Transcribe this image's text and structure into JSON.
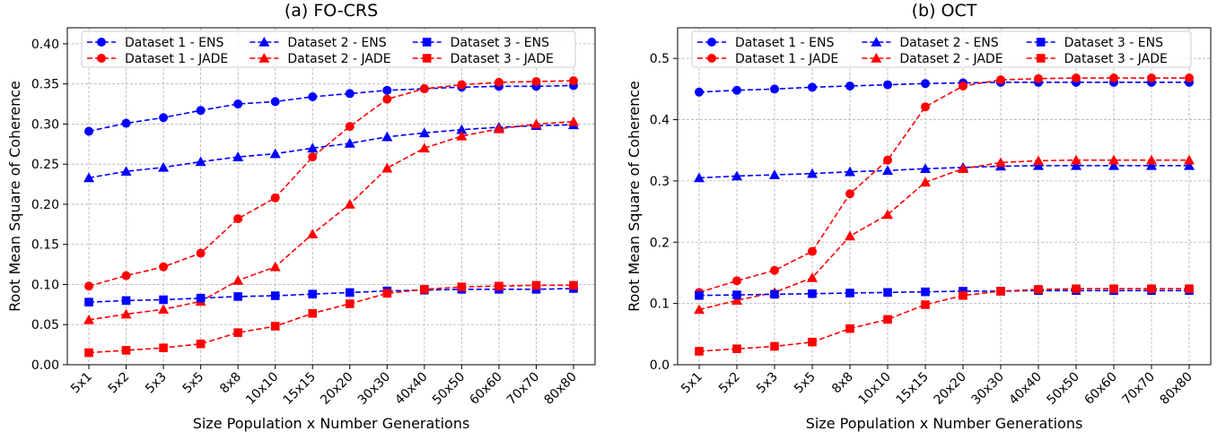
{
  "chart_data": [
    {
      "type": "line",
      "title": "(a) FO-CRS",
      "xlabel": "Size Population x Number Generations",
      "ylabel": "Root Mean Square of Coherence",
      "categories": [
        "5x1",
        "5x2",
        "5x3",
        "5x5",
        "8x8",
        "10x10",
        "15x15",
        "20x20",
        "30x30",
        "40x40",
        "50x50",
        "60x60",
        "70x70",
        "80x80"
      ],
      "ylim": [
        0,
        0.42
      ],
      "yticks": [
        "0.00",
        "0.05",
        "0.10",
        "0.15",
        "0.20",
        "0.25",
        "0.30",
        "0.35",
        "0.40"
      ],
      "grid": true,
      "legend_position": "top",
      "series": [
        {
          "name": "Dataset 1 - ENS",
          "color": "#0000ff",
          "marker": "circle",
          "values": [
            0.291,
            0.301,
            0.308,
            0.317,
            0.325,
            0.328,
            0.334,
            0.338,
            0.342,
            0.344,
            0.346,
            0.347,
            0.347,
            0.348
          ]
        },
        {
          "name": "Dataset 1 - JADE",
          "color": "#ff0000",
          "marker": "circle",
          "values": [
            0.098,
            0.111,
            0.122,
            0.139,
            0.182,
            0.208,
            0.259,
            0.297,
            0.331,
            0.344,
            0.349,
            0.352,
            0.353,
            0.354
          ]
        },
        {
          "name": "Dataset 2 - ENS",
          "color": "#0000ff",
          "marker": "triangle",
          "values": [
            0.233,
            0.241,
            0.246,
            0.253,
            0.259,
            0.263,
            0.27,
            0.276,
            0.284,
            0.289,
            0.293,
            0.296,
            0.298,
            0.299
          ]
        },
        {
          "name": "Dataset 2 - JADE",
          "color": "#ff0000",
          "marker": "triangle",
          "values": [
            0.056,
            0.063,
            0.069,
            0.079,
            0.105,
            0.122,
            0.163,
            0.2,
            0.245,
            0.27,
            0.285,
            0.294,
            0.3,
            0.303
          ]
        },
        {
          "name": "Dataset 3 - ENS",
          "color": "#0000ff",
          "marker": "square",
          "values": [
            0.078,
            0.08,
            0.081,
            0.083,
            0.085,
            0.086,
            0.088,
            0.09,
            0.092,
            0.093,
            0.094,
            0.094,
            0.094,
            0.095
          ]
        },
        {
          "name": "Dataset 3 - JADE",
          "color": "#ff0000",
          "marker": "square",
          "values": [
            0.015,
            0.018,
            0.021,
            0.026,
            0.04,
            0.048,
            0.064,
            0.076,
            0.089,
            0.094,
            0.097,
            0.098,
            0.099,
            0.099
          ]
        }
      ]
    },
    {
      "type": "line",
      "title": "(b) OCT",
      "xlabel": "Size Population x Number Generations",
      "ylabel": "Root Mean Square of Coherence",
      "categories": [
        "5x1",
        "5x2",
        "5x3",
        "5x5",
        "8x8",
        "10x10",
        "15x15",
        "20x20",
        "30x30",
        "40x40",
        "50x50",
        "60x60",
        "70x70",
        "80x80"
      ],
      "ylim": [
        0,
        0.55
      ],
      "yticks": [
        "0.0",
        "0.1",
        "0.2",
        "0.3",
        "0.4",
        "0.5"
      ],
      "grid": true,
      "legend_position": "top",
      "series": [
        {
          "name": "Dataset 1 - ENS",
          "color": "#0000ff",
          "marker": "circle",
          "values": [
            0.445,
            0.448,
            0.45,
            0.453,
            0.455,
            0.457,
            0.459,
            0.46,
            0.461,
            0.461,
            0.461,
            0.461,
            0.461,
            0.461
          ]
        },
        {
          "name": "Dataset 1 - JADE",
          "color": "#ff0000",
          "marker": "circle",
          "values": [
            0.118,
            0.137,
            0.154,
            0.185,
            0.279,
            0.334,
            0.421,
            0.455,
            0.465,
            0.467,
            0.468,
            0.468,
            0.468,
            0.468
          ]
        },
        {
          "name": "Dataset 2 - ENS",
          "color": "#0000ff",
          "marker": "triangle",
          "values": [
            0.305,
            0.308,
            0.31,
            0.312,
            0.315,
            0.317,
            0.32,
            0.322,
            0.324,
            0.325,
            0.325,
            0.325,
            0.325,
            0.325
          ]
        },
        {
          "name": "Dataset 2 - JADE",
          "color": "#ff0000",
          "marker": "triangle",
          "values": [
            0.09,
            0.105,
            0.118,
            0.142,
            0.21,
            0.245,
            0.298,
            0.32,
            0.33,
            0.333,
            0.334,
            0.334,
            0.334,
            0.334
          ]
        },
        {
          "name": "Dataset 3 - ENS",
          "color": "#0000ff",
          "marker": "square",
          "values": [
            0.113,
            0.114,
            0.115,
            0.116,
            0.117,
            0.118,
            0.119,
            0.12,
            0.12,
            0.121,
            0.121,
            0.121,
            0.121,
            0.121
          ]
        },
        {
          "name": "Dataset 3 - JADE",
          "color": "#ff0000",
          "marker": "square",
          "values": [
            0.022,
            0.026,
            0.03,
            0.037,
            0.059,
            0.074,
            0.098,
            0.113,
            0.12,
            0.123,
            0.124,
            0.124,
            0.124,
            0.124
          ]
        }
      ]
    }
  ]
}
